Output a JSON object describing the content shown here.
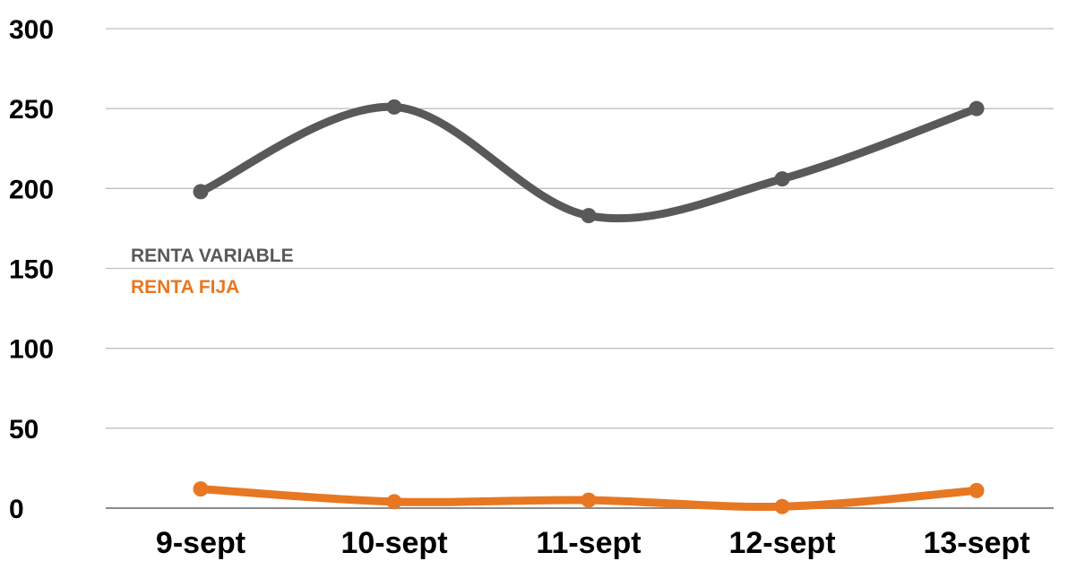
{
  "chart_data": {
    "type": "line",
    "title": "",
    "xlabel": "",
    "ylabel": "",
    "categories": [
      "9-sept",
      "10-sept",
      "11-sept",
      "12-sept",
      "13-sept"
    ],
    "ylim": [
      0,
      300
    ],
    "yticks": [
      "0",
      "50",
      "100",
      "150",
      "200",
      "250",
      "300"
    ],
    "grid": true,
    "legend_position": "left-middle",
    "series": [
      {
        "name": "RENTA VARIABLE",
        "color": "#595959",
        "values": [
          198,
          251,
          183,
          206,
          250
        ]
      },
      {
        "name": "RENTA FIJA",
        "color": "#E87722",
        "values": [
          12,
          4,
          5,
          1,
          11
        ]
      }
    ]
  }
}
